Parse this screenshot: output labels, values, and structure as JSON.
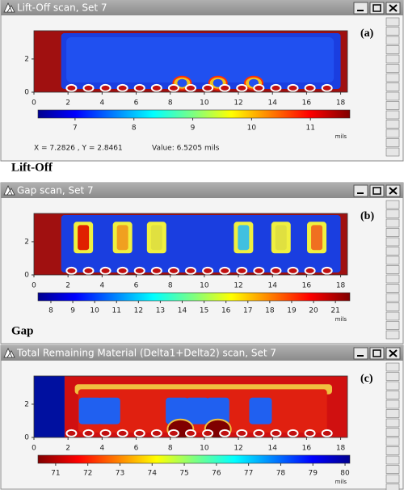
{
  "windows": [
    {
      "title": "Lift-Off scan, Set 7",
      "label": "(a)",
      "xlim": [
        0,
        18.4
      ],
      "ylim": [
        0,
        3.7
      ],
      "xticks": [
        0,
        2,
        4,
        6,
        8,
        10,
        12,
        14,
        16,
        18
      ],
      "yticks": [
        0,
        2
      ],
      "colorbar": {
        "range": [
          6.37,
          11.67
        ],
        "ticks": [
          7,
          8,
          9,
          10,
          11
        ],
        "unit": "mils",
        "reversed": false
      },
      "status": {
        "coords": "X = 7.2826 , Y = 2.8461",
        "value": "Value: 6.5205 mils"
      }
    },
    {
      "title": "Gap scan, Set 7",
      "label": "(b)",
      "xlim": [
        0,
        18.4
      ],
      "ylim": [
        0,
        3.7
      ],
      "xticks": [
        0,
        2,
        4,
        6,
        8,
        10,
        12,
        14,
        16,
        18
      ],
      "yticks": [
        0,
        2
      ],
      "colorbar": {
        "range": [
          7.41,
          21.66
        ],
        "ticks": [
          8,
          9,
          10,
          11,
          12,
          13,
          14,
          15,
          16,
          17,
          18,
          19,
          20,
          21
        ],
        "unit": "mils",
        "reversed": false
      }
    },
    {
      "title": "Total Remaining Material (Delta1+Delta2) scan, Set 7",
      "label": "(c)",
      "xlim": [
        0,
        18.4
      ],
      "ylim": [
        0,
        3.7
      ],
      "xticks": [
        0,
        2,
        4,
        6,
        8,
        10,
        12,
        14,
        16,
        18
      ],
      "yticks": [
        0,
        2
      ],
      "colorbar": {
        "range": [
          70.45,
          80.15
        ],
        "ticks": [
          71,
          72,
          73,
          74,
          75,
          76,
          77,
          78,
          79,
          80
        ],
        "unit": "mils",
        "reversed": true
      }
    }
  ],
  "captions": [
    "Lift-Off",
    "Gap"
  ]
}
